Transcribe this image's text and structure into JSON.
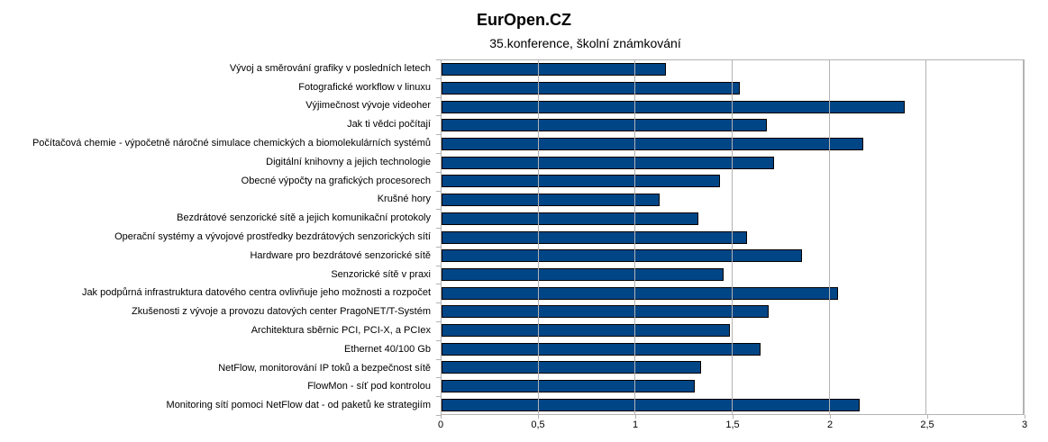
{
  "chart_data": {
    "type": "bar",
    "orientation": "horizontal",
    "title": "EurOpen.CZ",
    "subtitle": "35.konference, školní známkování",
    "categories": [
      "Vývoj a směrování grafiky v posledních letech",
      "Fotografické workflow v linuxu",
      "Výjimečnost vývoje videoher",
      "Jak ti vědci počítají",
      "Počítačová chemie - výpočetně náročné simulace chemických a biomolekulárních systémů",
      "Digitální knihovny a jejich technologie",
      "Obecné výpočty na grafických procesorech",
      "Krušné hory",
      "Bezdrátové senzorické sítě a jejich komunikační protokoly",
      "Operační systémy a vývojové prostředky bezdrátových senzorických sítí",
      "Hardware pro bezdrátové senzorické sítě",
      "Senzorické sítě v praxi",
      "Jak podpůrná infrastruktura datového centra ovlivňuje jeho možnosti a rozpočet",
      "Zkušenosti z vývoje a provozu datových center PragoNET/T-Systém",
      "Architektura sběrnic PCI, PCI-X, a PCIex",
      "Ethernet 40/100 Gb",
      "NetFlow, monitorování IP toků a bezpečnost sítě",
      "FlowMon - síť pod kontrolou",
      "Monitoring sítí pomoci NetFlow dat - od paketů ke strategiím"
    ],
    "values": [
      1.16,
      1.54,
      2.39,
      1.68,
      2.18,
      1.72,
      1.44,
      1.13,
      1.33,
      1.58,
      1.86,
      1.46,
      2.05,
      1.69,
      1.49,
      1.65,
      1.34,
      1.31,
      2.16
    ],
    "xlim": [
      0,
      3
    ],
    "x_ticks": [
      "0",
      "0,5",
      "1",
      "1,5",
      "2",
      "2,5",
      "3"
    ],
    "x_tick_values": [
      0,
      0.5,
      1,
      1.5,
      2,
      2.5,
      3
    ],
    "grid": "vertical",
    "legend": "none",
    "bar_color": "#004586",
    "bar_border_color": "#000000",
    "grid_color": "#b3b3b3"
  }
}
